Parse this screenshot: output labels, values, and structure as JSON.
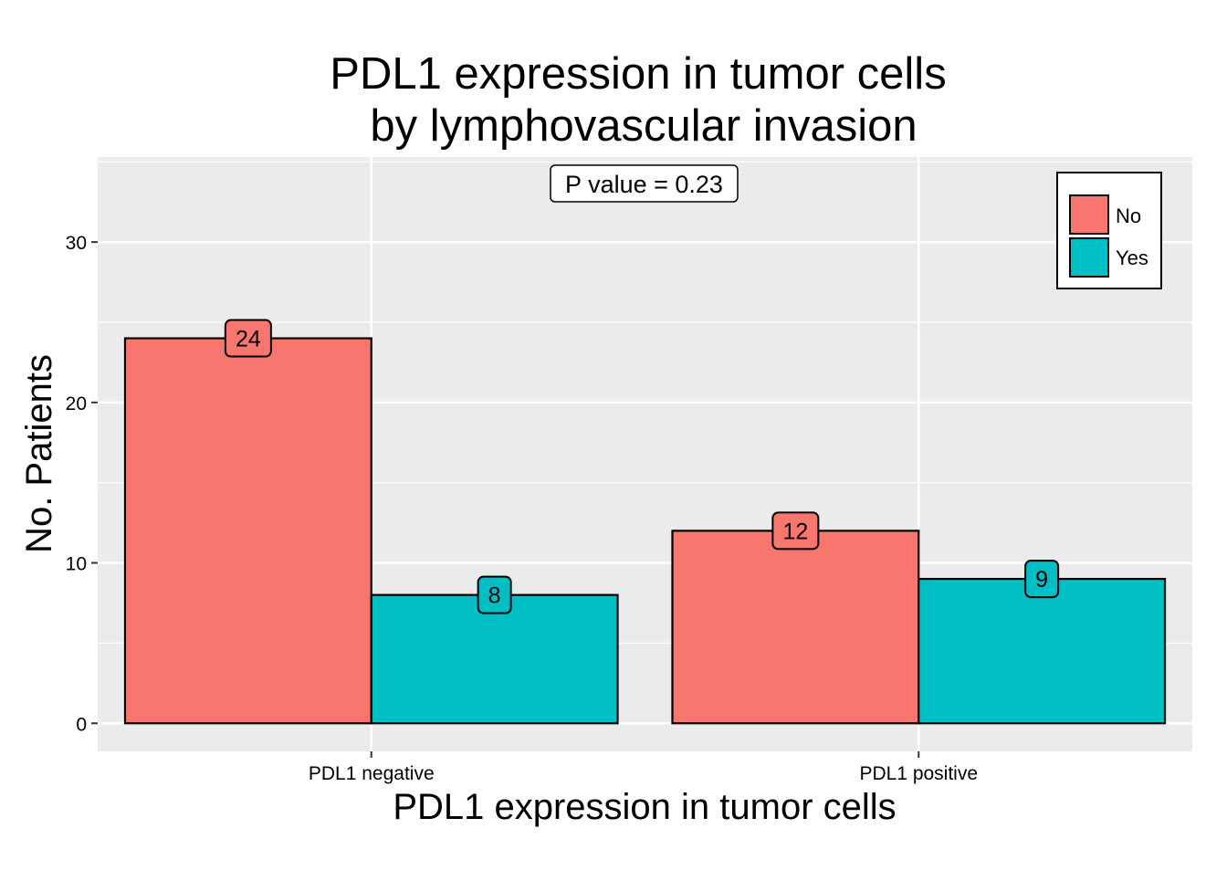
{
  "chart_data": {
    "type": "bar",
    "title_lines": [
      "PDL1 expression in tumor cells",
      "by lymphovascular invasion"
    ],
    "xlabel": "PDL1 expression in tumor cells",
    "ylabel": "No. Patients",
    "categories": [
      "PDL1 negative",
      "PDL1 positive"
    ],
    "series": [
      {
        "name": "No",
        "values": [
          24,
          12
        ],
        "color": "#F8766D"
      },
      {
        "name": "Yes",
        "values": [
          8,
          9
        ],
        "color": "#00BFC4"
      }
    ],
    "y_ticks": [
      0,
      10,
      20,
      30
    ],
    "ylim": [
      -1.75,
      35.3
    ],
    "grid": true,
    "panel_background": "#EBEBEB",
    "annotation": "P value = 0.23",
    "legend_position": "top-right",
    "data_labels": true
  }
}
